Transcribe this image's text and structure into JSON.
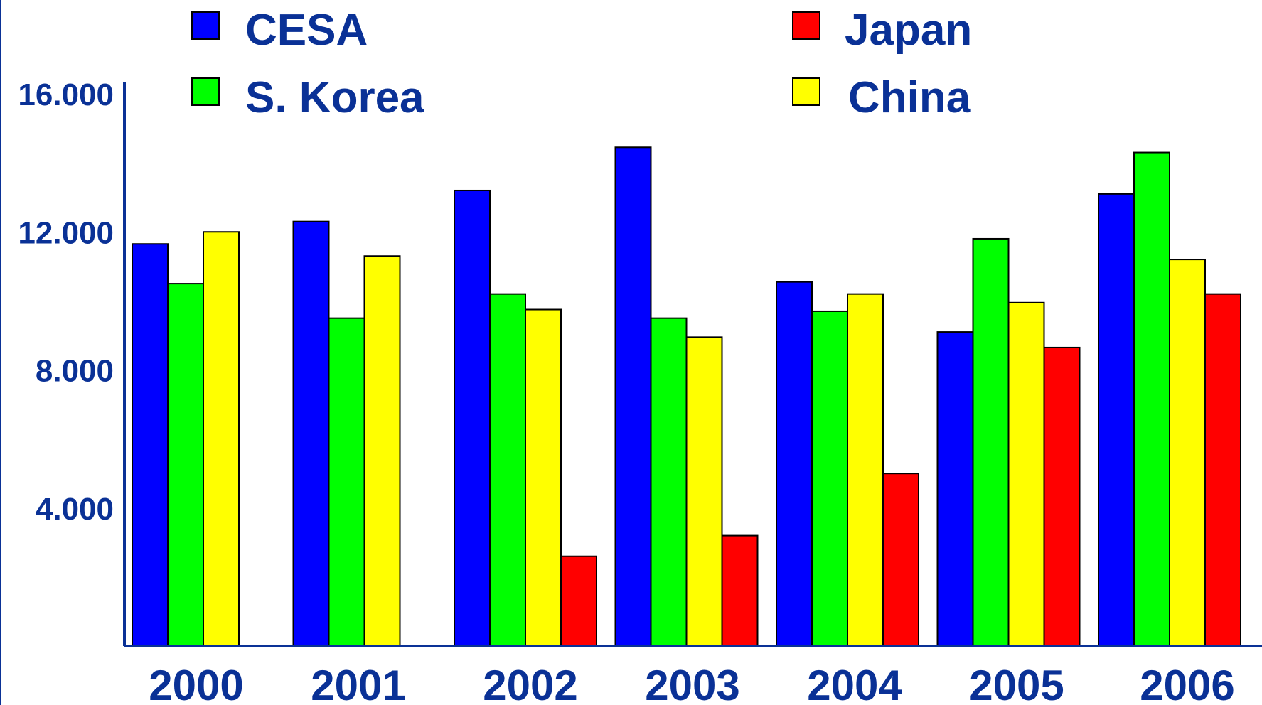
{
  "chart_data": {
    "type": "bar",
    "title": "",
    "xlabel": "",
    "ylabel": "",
    "categories": [
      "2000",
      "2001",
      "2002",
      "2003",
      "2004",
      "2005",
      "2006"
    ],
    "ylim": [
      0,
      16000
    ],
    "yticks": [
      4000,
      8000,
      12000,
      16000
    ],
    "ytick_labels": [
      "4.000",
      "8.000",
      "12.000",
      "16.000"
    ],
    "grid": false,
    "legend_position": "top",
    "series": [
      {
        "name": "CESA",
        "color": "#0000ff",
        "values": [
          11650,
          12300,
          13200,
          14450,
          10550,
          9100,
          13100
        ]
      },
      {
        "name": "S. Korea",
        "color": "#00ff00",
        "values": [
          10500,
          9500,
          10200,
          9500,
          9700,
          11800,
          14300
        ]
      },
      {
        "name": "China",
        "color": "#ffff00",
        "values": [
          12000,
          11300,
          9750,
          8950,
          10200,
          9950,
          11200
        ]
      },
      {
        "name": "Japan",
        "color": "#ff0000",
        "values": [
          null,
          null,
          2600,
          3200,
          5000,
          8650,
          10200
        ]
      }
    ],
    "legend": [
      {
        "series": "CESA"
      },
      {
        "series": "Japan"
      },
      {
        "series": "S. Korea"
      },
      {
        "series": "China"
      }
    ],
    "axis_color": "#0a3196",
    "text_color": "#0a3196"
  }
}
